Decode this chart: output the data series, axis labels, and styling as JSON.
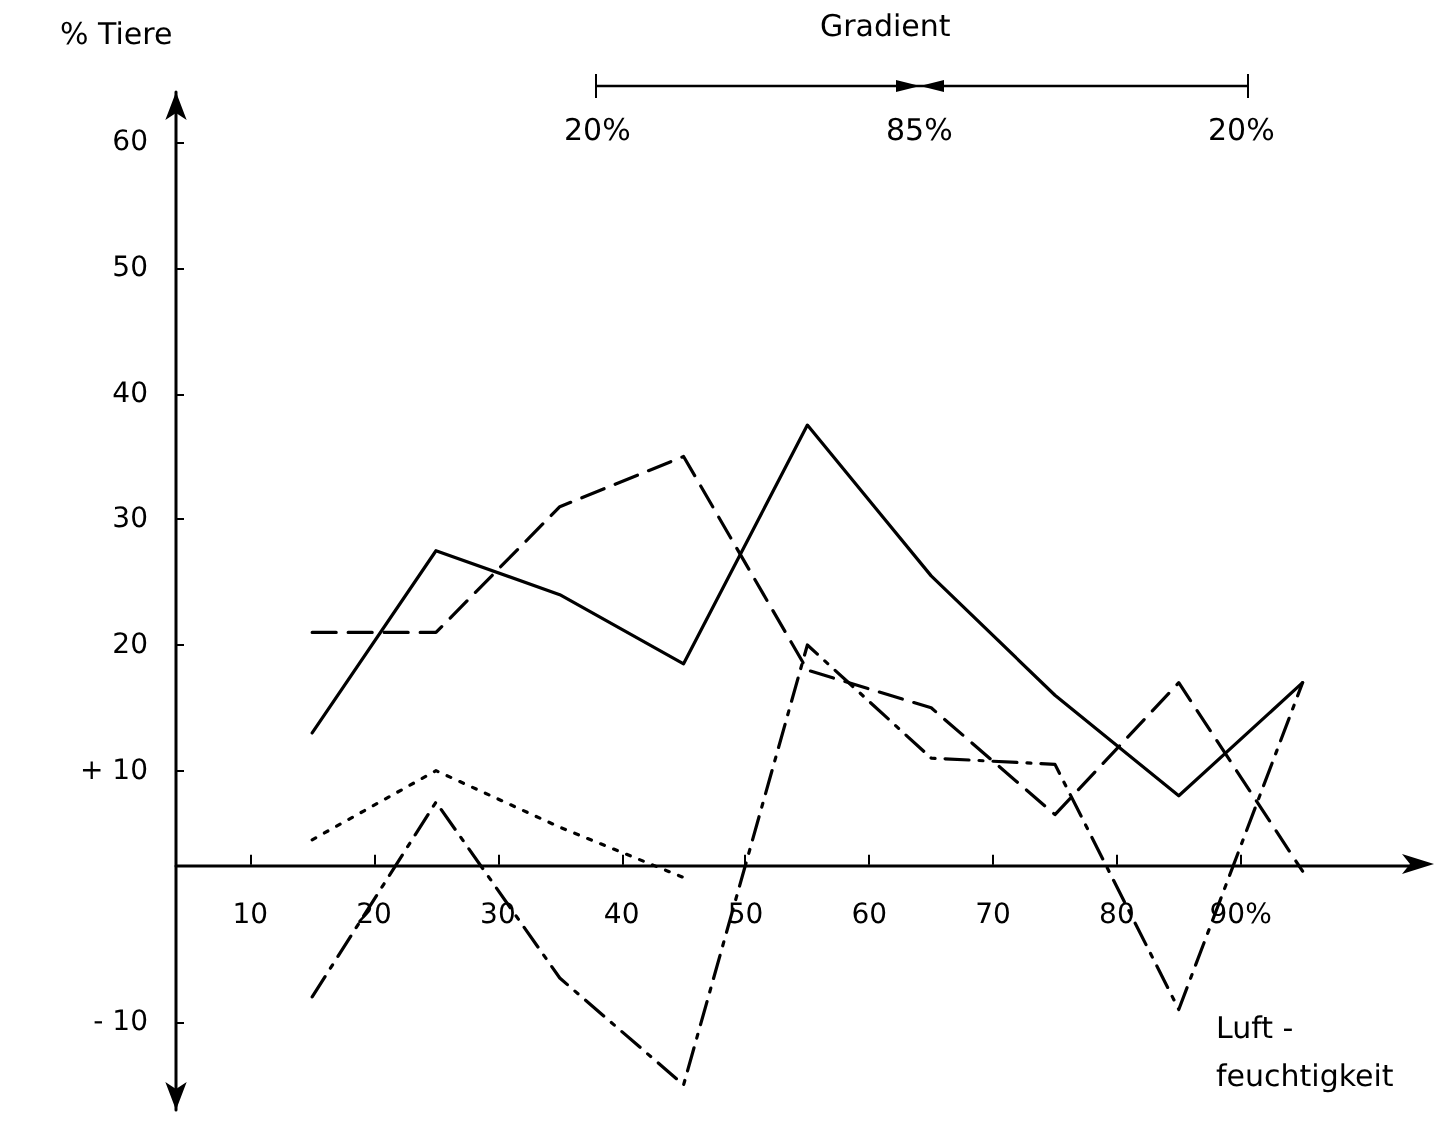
{
  "chart_data": {
    "type": "line",
    "xlabel": "Luft - feuchtigkeit",
    "ylabel": "% Tiere",
    "annotations": [
      "Gradient",
      "20%",
      "85%",
      "20%"
    ],
    "x": [
      15,
      25,
      35,
      45,
      55,
      65,
      75,
      85,
      95
    ],
    "series": [
      {
        "color": "#000000",
        "line_style": "solid",
        "values": [
          13,
          27.5,
          24,
          18.5,
          37.5,
          25.5,
          16,
          8,
          17
        ]
      },
      {
        "color": "#000000",
        "line_style": "dashed",
        "values": [
          21,
          21,
          31,
          35,
          18,
          15,
          6.5,
          17,
          2
        ]
      },
      {
        "color": "#000000",
        "line_style": "dashdot",
        "values": [
          -8,
          7.5,
          -6.5,
          -15,
          20,
          11,
          10.5,
          -9,
          17
        ]
      },
      {
        "color": "#000000",
        "line_style": "dotted",
        "values": [
          4.5,
          10,
          5.5,
          1.5,
          null,
          null,
          null,
          null,
          null
        ]
      }
    ],
    "xlim": [
      4,
      104
    ],
    "xticks": [
      10,
      20,
      30,
      40,
      50,
      60,
      70,
      80,
      {
        "value": 90,
        "label": "90%"
      }
    ],
    "ylim": [
      -17,
      64
    ],
    "yticks": [
      {
        "value": -10,
        "label": "- 10"
      },
      {
        "value": 10,
        "label": "+ 10"
      },
      20,
      30,
      40,
      50,
      60
    ],
    "grid": false,
    "marker": "none"
  }
}
